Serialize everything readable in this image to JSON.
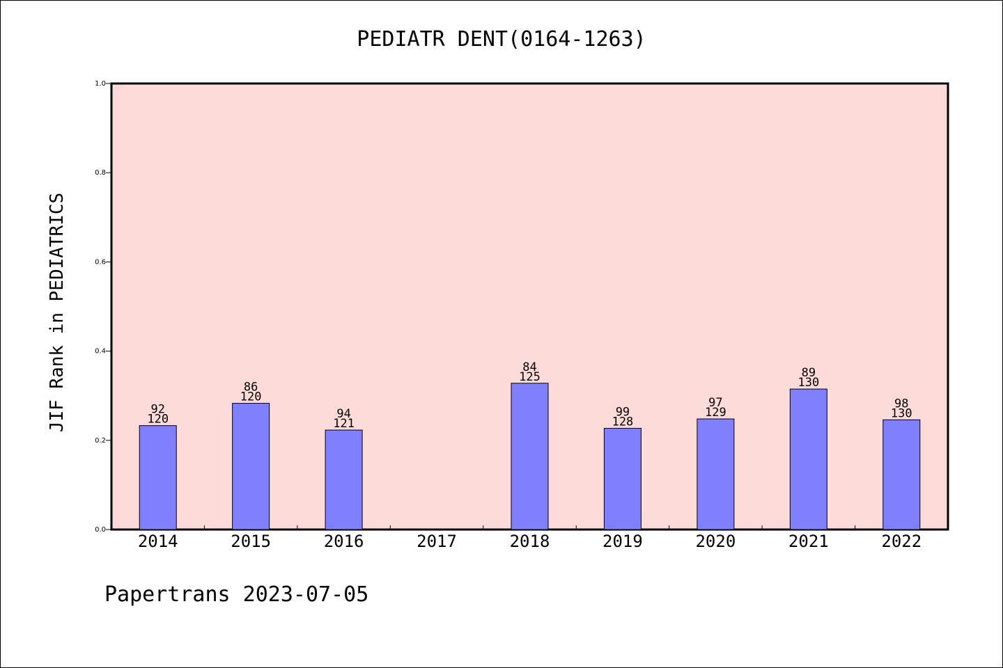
{
  "chart_data": {
    "type": "bar",
    "title": "PEDIATR DENT(0164-1263)",
    "xlabel": "",
    "ylabel": "JIF Rank in PEDIATRICS",
    "categories": [
      "2014",
      "2015",
      "2016",
      "2017",
      "2018",
      "2019",
      "2020",
      "2021",
      "2022"
    ],
    "values": [
      0.233,
      0.283,
      0.223,
      null,
      0.328,
      0.227,
      0.248,
      0.315,
      0.246
    ],
    "bar_labels": [
      {
        "rank": "92",
        "total": "120"
      },
      {
        "rank": "86",
        "total": "120"
      },
      {
        "rank": "94",
        "total": "121"
      },
      null,
      {
        "rank": "84",
        "total": "125"
      },
      {
        "rank": "99",
        "total": "128"
      },
      {
        "rank": "97",
        "total": "129"
      },
      {
        "rank": "89",
        "total": "130"
      },
      {
        "rank": "98",
        "total": "130"
      }
    ],
    "ylim": [
      0,
      1.0
    ],
    "yticks": [
      "0.0",
      "0.2",
      "0.4",
      "0.6",
      "0.8",
      "1.0"
    ],
    "grid": false,
    "legend": "none",
    "footer": "Papertrans 2023-07-05",
    "colors": {
      "plot_background": "#fddbd8",
      "bar_fill": "#8080ff",
      "bar_edge": "#000000",
      "axis": "#000000"
    }
  }
}
